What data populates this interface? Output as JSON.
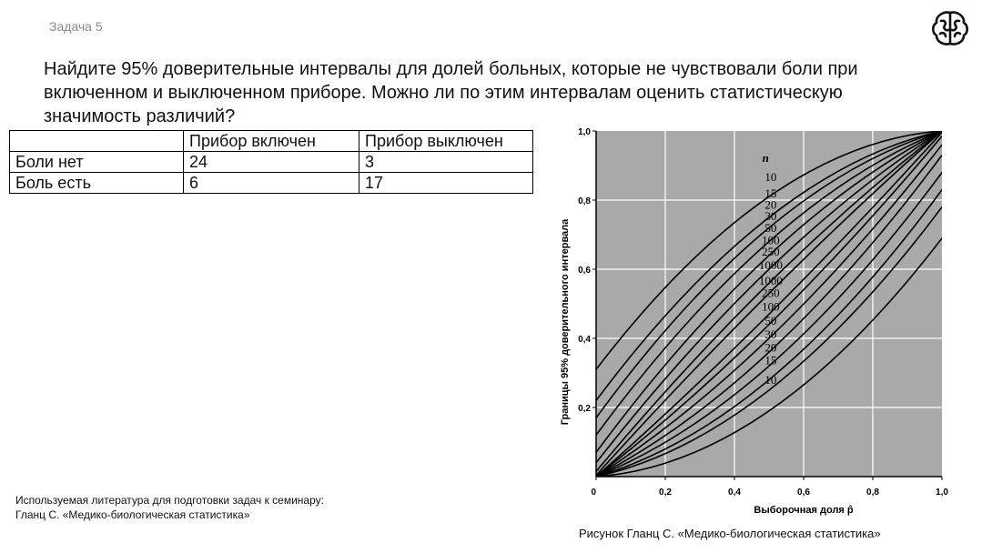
{
  "task_label": "Задача 5",
  "question": "Найдите 95% доверительные интервалы для долей больных, которые не чувствовали боли при включенном и выключенном приборе. Можно ли по этим интервалам оценить статистическую значимость различий?",
  "table": {
    "header": [
      "",
      "Прибор включен",
      "Прибор выключен"
    ],
    "rows": [
      [
        "Боли нет",
        "24",
        "3"
      ],
      [
        "Боль есть",
        "6",
        "17"
      ]
    ]
  },
  "literature": {
    "line1": "Используемая литература для подготовки задач к семинару:",
    "line2": "Гланц С. «Медико-биологическая статистика»"
  },
  "caption": "Рисунок Гланц С. «Медико-биологическая статистика»",
  "chart_data": {
    "type": "line",
    "xlabel": "Выборочная доля p̂",
    "ylabel": "Границы 95% доверительного интервала",
    "xlim": [
      0,
      1
    ],
    "ylim": [
      0,
      1
    ],
    "x_ticks": [
      "0",
      "0,2",
      "0,4",
      "0,6",
      "0,8",
      "1,0"
    ],
    "y_ticks": [
      "0,2",
      "0,4",
      "0,6",
      "0,8",
      "1,0"
    ],
    "grid": true,
    "legend_title": "n",
    "upper_labels": [
      "10",
      "15",
      "20",
      "30",
      "50",
      "100",
      "250",
      "1000"
    ],
    "lower_labels": [
      "1000",
      "250",
      "100",
      "50",
      "30",
      "20",
      "15",
      "10"
    ],
    "series": [
      {
        "name": "10",
        "values": [
          [
            0,
            0.31,
            0
          ],
          [
            0.5,
            0.81,
            0.19
          ],
          [
            1,
            1,
            0.69
          ]
        ]
      },
      {
        "name": "15",
        "values": [
          [
            0,
            0.22,
            0
          ],
          [
            0.5,
            0.75,
            0.25
          ],
          [
            1,
            1,
            0.78
          ]
        ]
      },
      {
        "name": "20",
        "values": [
          [
            0,
            0.17,
            0
          ],
          [
            0.5,
            0.72,
            0.28
          ],
          [
            1,
            1,
            0.83
          ]
        ]
      },
      {
        "name": "30",
        "values": [
          [
            0,
            0.12,
            0
          ],
          [
            0.5,
            0.68,
            0.32
          ],
          [
            1,
            1,
            0.88
          ]
        ]
      },
      {
        "name": "50",
        "values": [
          [
            0,
            0.07,
            0
          ],
          [
            0.5,
            0.64,
            0.36
          ],
          [
            1,
            1,
            0.93
          ]
        ]
      },
      {
        "name": "100",
        "values": [
          [
            0,
            0.04,
            0
          ],
          [
            0.5,
            0.6,
            0.4
          ],
          [
            1,
            1,
            0.96
          ]
        ]
      },
      {
        "name": "250",
        "values": [
          [
            0,
            0.015,
            0
          ],
          [
            0.5,
            0.56,
            0.44
          ],
          [
            1,
            1,
            0.985
          ]
        ]
      },
      {
        "name": "1000",
        "values": [
          [
            0,
            0.004,
            0
          ],
          [
            0.5,
            0.53,
            0.47
          ],
          [
            1,
            1,
            0.996
          ]
        ]
      }
    ]
  },
  "colors": {
    "plot_bg": "#a9a9a9",
    "grid": "#ffffff",
    "curve": "#000000",
    "task_label": "#8a8a8a"
  }
}
